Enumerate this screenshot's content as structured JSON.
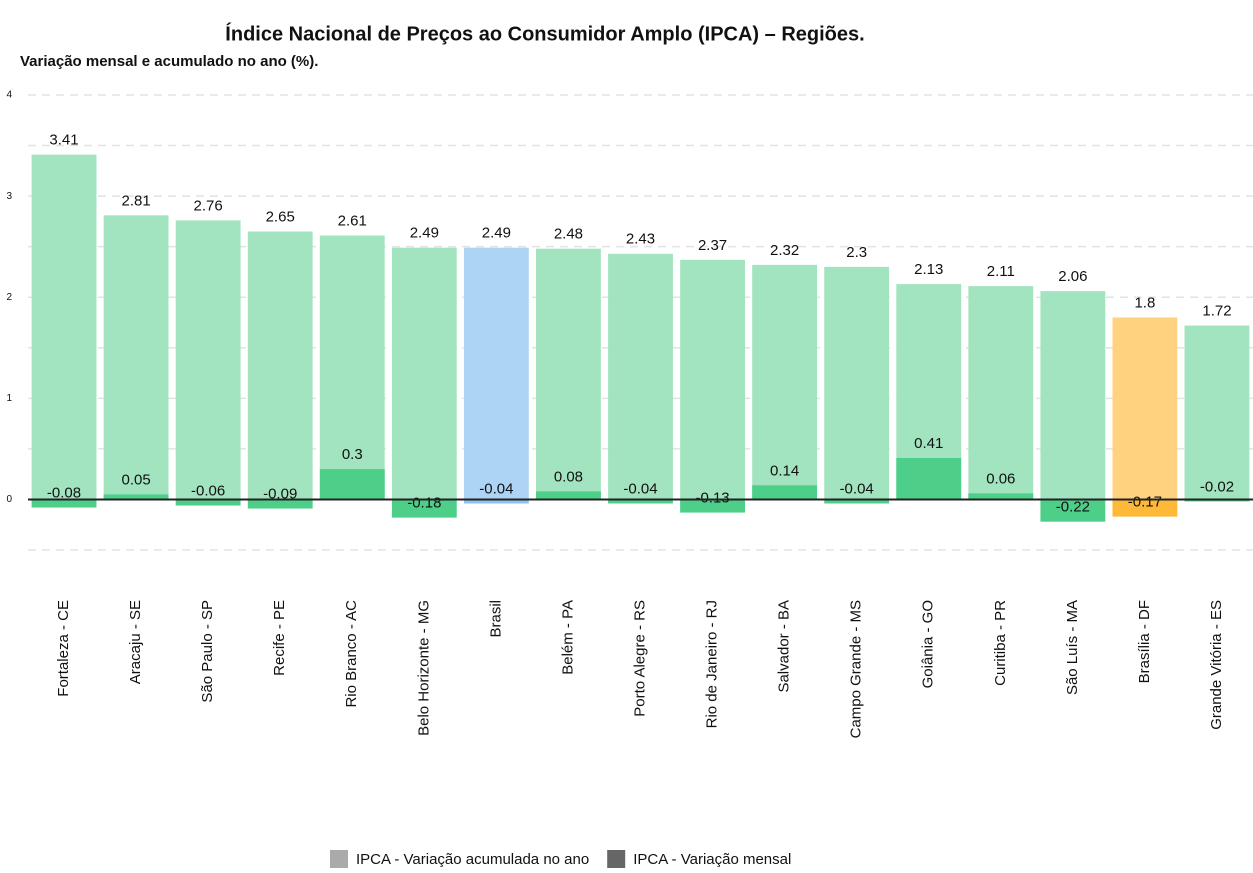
{
  "chart_data": {
    "type": "bar",
    "title": "Índice Nacional de Preços ao Consumidor Amplo (IPCA) – Regiões.",
    "subtitle": "Variação mensal e acumulado no ano (%).",
    "categories": [
      "Fortaleza - CE",
      "Aracaju - SE",
      "São Paulo - SP",
      "Recife - PE",
      "Rio Branco - AC",
      "Belo Horizonte - MG",
      "Brasil",
      "Belém - PA",
      "Porto Alegre - RS",
      "Rio de Janeiro - RJ",
      "Salvador - BA",
      "Campo Grande - MS",
      "Goiânia - GO",
      "Curitiba - PR",
      "São Luís - MA",
      "Brasília - DF",
      "Grande Vitória - ES"
    ],
    "series": [
      {
        "name": "IPCA - Variação acumulada no ano",
        "color": "#aaaaaa",
        "values": [
          3.41,
          2.81,
          2.76,
          2.65,
          2.61,
          2.49,
          2.49,
          2.48,
          2.43,
          2.37,
          2.32,
          2.3,
          2.13,
          2.11,
          2.06,
          1.8,
          1.72
        ],
        "bar_colors": [
          "#a3e4c0",
          "#a3e4c0",
          "#a3e4c0",
          "#a3e4c0",
          "#a3e4c0",
          "#a3e4c0",
          "#add3f5",
          "#a3e4c0",
          "#a3e4c0",
          "#a3e4c0",
          "#a3e4c0",
          "#a3e4c0",
          "#a3e4c0",
          "#a3e4c0",
          "#a3e4c0",
          "#ffd27f",
          "#a3e4c0"
        ]
      },
      {
        "name": "IPCA - Variação mensal",
        "color": "#666666",
        "values": [
          -0.08,
          0.05,
          -0.06,
          -0.09,
          0.3,
          -0.18,
          -0.04,
          0.08,
          -0.04,
          -0.13,
          0.14,
          -0.04,
          0.41,
          0.06,
          -0.22,
          -0.17,
          -0.02
        ],
        "bar_colors": [
          "#4dcf8a",
          "#4dcf8a",
          "#4dcf8a",
          "#4dcf8a",
          "#4dcf8a",
          "#4dcf8a",
          "#8fc1ee",
          "#4dcf8a",
          "#4dcf8a",
          "#4dcf8a",
          "#4dcf8a",
          "#4dcf8a",
          "#4dcf8a",
          "#4dcf8a",
          "#4dcf8a",
          "#ffb938",
          "#4dcf8a"
        ]
      }
    ],
    "ylim": [
      -0.5,
      4
    ],
    "yticks": [
      0,
      1,
      2,
      3,
      4
    ],
    "grid": true
  }
}
